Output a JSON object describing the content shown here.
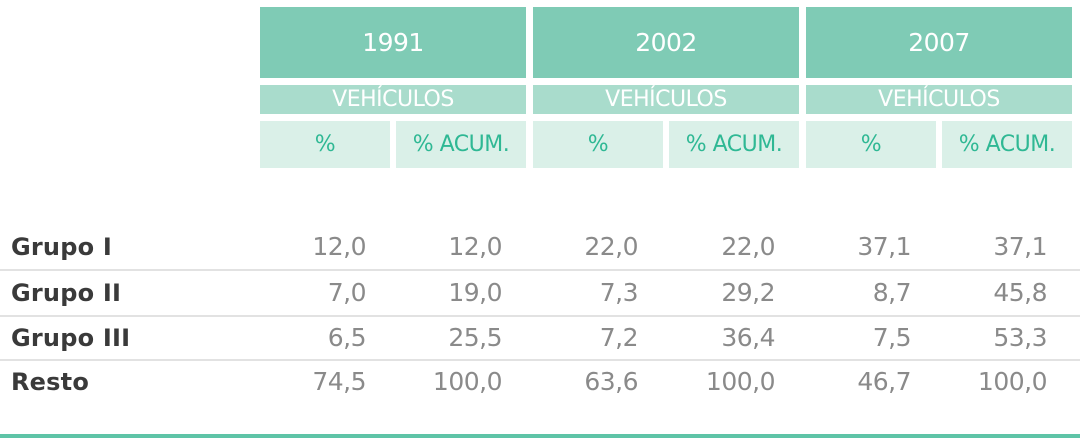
{
  "chart_data": {
    "type": "table",
    "years": [
      "1991",
      "2002",
      "2007"
    ],
    "group_header": "VEHÍCULOS",
    "columns": [
      "%",
      "% ACUM."
    ],
    "rows": [
      {
        "label": "Grupo I",
        "values": [
          "12,0",
          "12,0",
          "22,0",
          "22,0",
          "37,1",
          "37,1"
        ]
      },
      {
        "label": "Grupo II",
        "values": [
          "7,0",
          "19,0",
          "7,3",
          "29,2",
          "8,7",
          "45,8"
        ]
      },
      {
        "label": "Grupo III",
        "values": [
          "6,5",
          "25,5",
          "7,2",
          "36,4",
          "7,5",
          "53,3"
        ]
      },
      {
        "label": "Resto",
        "values": [
          "74,5",
          "100,0",
          "63,6",
          "100,0",
          "46,7",
          "100,0"
        ]
      }
    ]
  },
  "colors": {
    "year_header": "#7fcbb5",
    "group_header": "#a9dccc",
    "sub_header_bg": "#daf0e8",
    "sub_header_text": "#2fb894",
    "rule": "#5ec4a7"
  }
}
